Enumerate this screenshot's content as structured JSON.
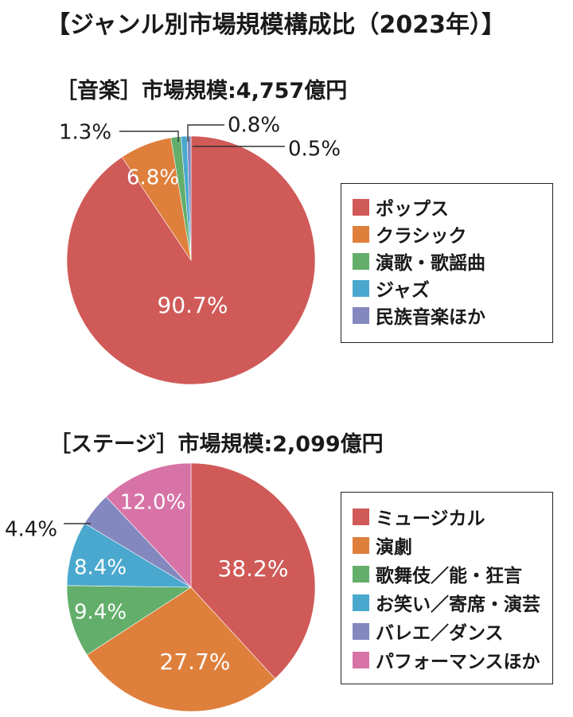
{
  "title": "【ジャンル別市場規模構成比（2023年）】",
  "colors": {
    "red": "#d05a58",
    "orange": "#df7f3c",
    "green": "#63ae6a",
    "blue": "#4aa8cf",
    "purple": "#8388bf",
    "pink": "#d873a7"
  },
  "chart_data": [
    {
      "type": "pie",
      "title": "［音楽］市場規模:4,757億円",
      "slices": [
        {
          "name": "ポップス",
          "value": 90.7,
          "label": "90.7%",
          "color": "#d05a58"
        },
        {
          "name": "クラシック",
          "value": 6.8,
          "label": "6.8%",
          "color": "#df7f3c"
        },
        {
          "name": "演歌・歌謡曲",
          "value": 1.3,
          "label": "1.3%",
          "color": "#63ae6a"
        },
        {
          "name": "ジャズ",
          "value": 0.8,
          "label": "0.8%",
          "color": "#4aa8cf"
        },
        {
          "name": "民族音楽ほか",
          "value": 0.5,
          "label": "0.5%",
          "color": "#8388bf"
        }
      ],
      "legend_position": "right"
    },
    {
      "type": "pie",
      "title": "［ステージ］市場規模:2,099億円",
      "slices": [
        {
          "name": "ミュージカル",
          "value": 38.2,
          "label": "38.2%",
          "color": "#d05a58"
        },
        {
          "name": "演劇",
          "value": 27.7,
          "label": "27.7%",
          "color": "#df7f3c"
        },
        {
          "name": "歌舞伎／能・狂言",
          "value": 9.4,
          "label": "9.4%",
          "color": "#63ae6a"
        },
        {
          "name": "お笑い／寄席・演芸",
          "value": 8.4,
          "label": "8.4%",
          "color": "#4aa8cf"
        },
        {
          "name": "バレエ／ダンス",
          "value": 4.4,
          "label": "4.4%",
          "color": "#8388bf"
        },
        {
          "name": "パフォーマンスほか",
          "value": 12.0,
          "label": "12.0%",
          "color": "#d873a7"
        }
      ],
      "legend_position": "right"
    }
  ]
}
